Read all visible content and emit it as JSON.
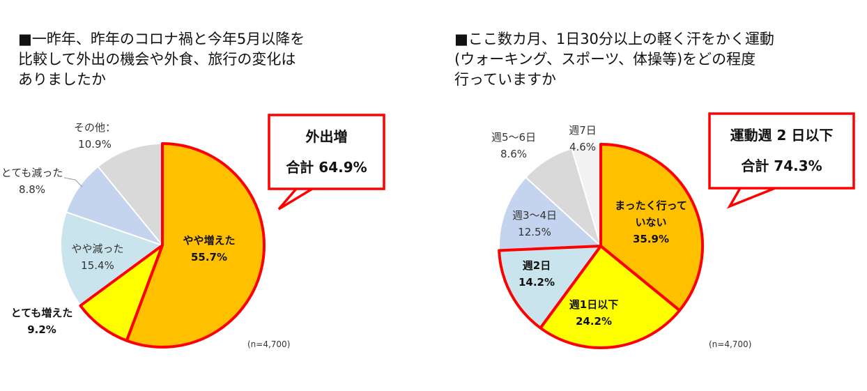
{
  "chart_data": [
    {
      "type": "pie",
      "title": "■一昨年、昨年のコロナ禍と今年5月以降を\n比較して外出の機会や外食、旅行の変化は\nありましたか",
      "categories": [
        "やや増えた",
        "とても増えた",
        "やや減った",
        "とても減った",
        "その他："
      ],
      "values": [
        55.7,
        9.2,
        15.4,
        8.8,
        10.9
      ],
      "value_labels": [
        "55.7%",
        "9.2%",
        "15.4%",
        "8.8%",
        "10.9%"
      ],
      "colors": [
        "#FFC000",
        "#FFFF00",
        "#C9E4EC",
        "#C5D4EE",
        "#D9D9D9"
      ],
      "highlighted": [
        true,
        true,
        false,
        false,
        false
      ],
      "callout": {
        "line1": "外出増",
        "line2": "合計 64.9%"
      },
      "note": "(n=4,700)"
    },
    {
      "type": "pie",
      "title": "■ここ数カ月、1日30分以上の軽く汗をかく運動\n(ウォーキング、スポーツ、体操等)をどの程度\n行っていますか",
      "categories": [
        "まったく行って\nいない",
        "週1日以下",
        "週2日",
        "週3〜4日",
        "週5〜6日",
        "週7日"
      ],
      "values": [
        35.9,
        24.2,
        14.2,
        12.5,
        8.6,
        4.6
      ],
      "value_labels": [
        "35.9%",
        "24.2%",
        "14.2%",
        "12.5%",
        "8.6%",
        "4.6%"
      ],
      "colors": [
        "#FFC000",
        "#FFFF00",
        "#C9E4EC",
        "#C5D4EE",
        "#D9D9D9",
        "#F2F2F2"
      ],
      "highlighted": [
        true,
        true,
        true,
        false,
        false,
        false
      ],
      "callout": {
        "line1": "運動週 2 日以下",
        "line2": "合計 74.3%"
      },
      "note": "(n=4,700)"
    }
  ]
}
